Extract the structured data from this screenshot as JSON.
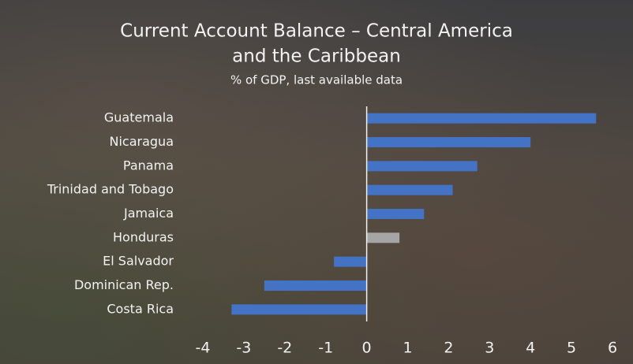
{
  "chart_data": {
    "type": "barh",
    "title": [
      "Current Account Balance – Central America",
      "and the Caribbean"
    ],
    "subtitle": "% of GDP, last available data",
    "categories": [
      "Guatemala",
      "Nicaragua",
      "Panama",
      "Trinidad and Tobago",
      "Jamaica",
      "Honduras",
      "El Salvador",
      "Dominican Rep.",
      "Costa Rica"
    ],
    "values": [
      5.6,
      4.0,
      2.7,
      2.1,
      1.4,
      0.8,
      -0.8,
      -2.5,
      -3.3
    ],
    "colors": [
      "#4472c4",
      "#4472c4",
      "#4472c4",
      "#4472c4",
      "#4472c4",
      "#a5a5a5",
      "#4472c4",
      "#4472c4",
      "#4472c4"
    ],
    "xlim": [
      -4,
      6
    ],
    "xticks": [
      -4,
      -3,
      -2,
      -1,
      0,
      1,
      2,
      3,
      4,
      5,
      6
    ],
    "grid": false
  }
}
